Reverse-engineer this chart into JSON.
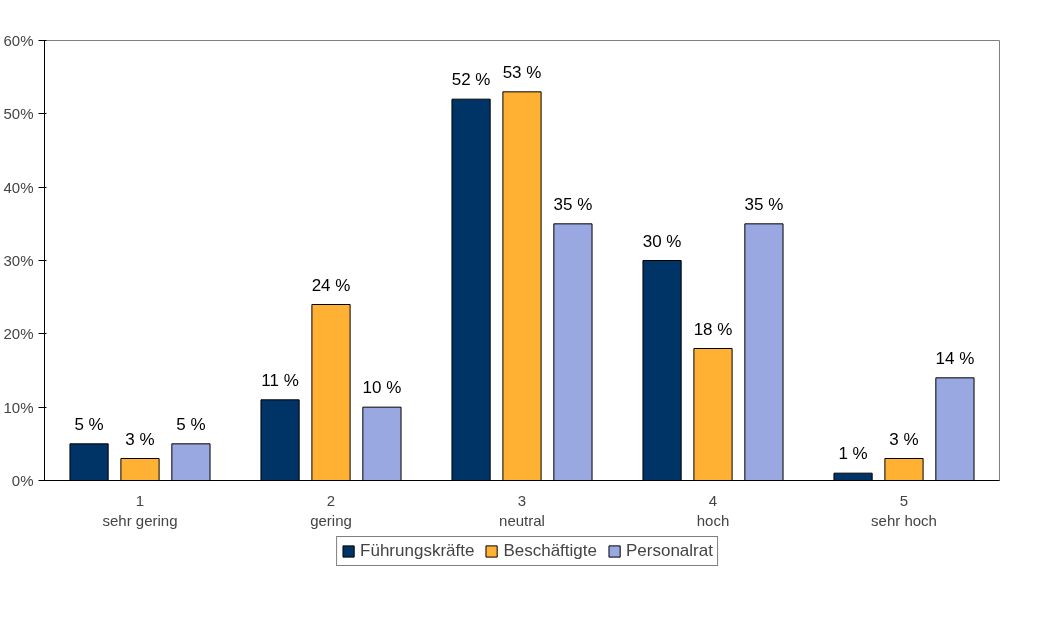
{
  "chart_data": {
    "type": "bar",
    "categories": [
      "1\nsehr gering",
      "2\ngering",
      "3\nneutral",
      "4\nhoch",
      "5\nsehr hoch"
    ],
    "series": [
      {
        "name": "Führungskräfte",
        "color": "#003366",
        "values": [
          5,
          11,
          52,
          30,
          1
        ],
        "value_labels": [
          "5 %",
          "11 %",
          "52 %",
          "30 %",
          "1 %"
        ]
      },
      {
        "name": "Beschäftigte",
        "color": "#ffb133",
        "values": [
          3,
          24,
          53,
          18,
          3
        ],
        "value_labels": [
          "3 %",
          "24 %",
          "53 %",
          "18 %",
          "3 %"
        ]
      },
      {
        "name": "Personalrat",
        "color": "#99a8e0",
        "values": [
          5,
          10,
          35,
          35,
          14
        ],
        "value_labels": [
          "5 %",
          "10 %",
          "35 %",
          "35 %",
          "14 %"
        ]
      }
    ],
    "ylim": [
      0,
      60
    ],
    "yticks": [
      {
        "value": 0,
        "label": "0%"
      },
      {
        "value": 10,
        "label": "10%"
      },
      {
        "value": 20,
        "label": "20%"
      },
      {
        "value": 30,
        "label": "30%"
      },
      {
        "value": 40,
        "label": "40%"
      },
      {
        "value": 50,
        "label": "50%"
      },
      {
        "value": 60,
        "label": "60%"
      }
    ],
    "grid": false,
    "legend": "bottom"
  }
}
